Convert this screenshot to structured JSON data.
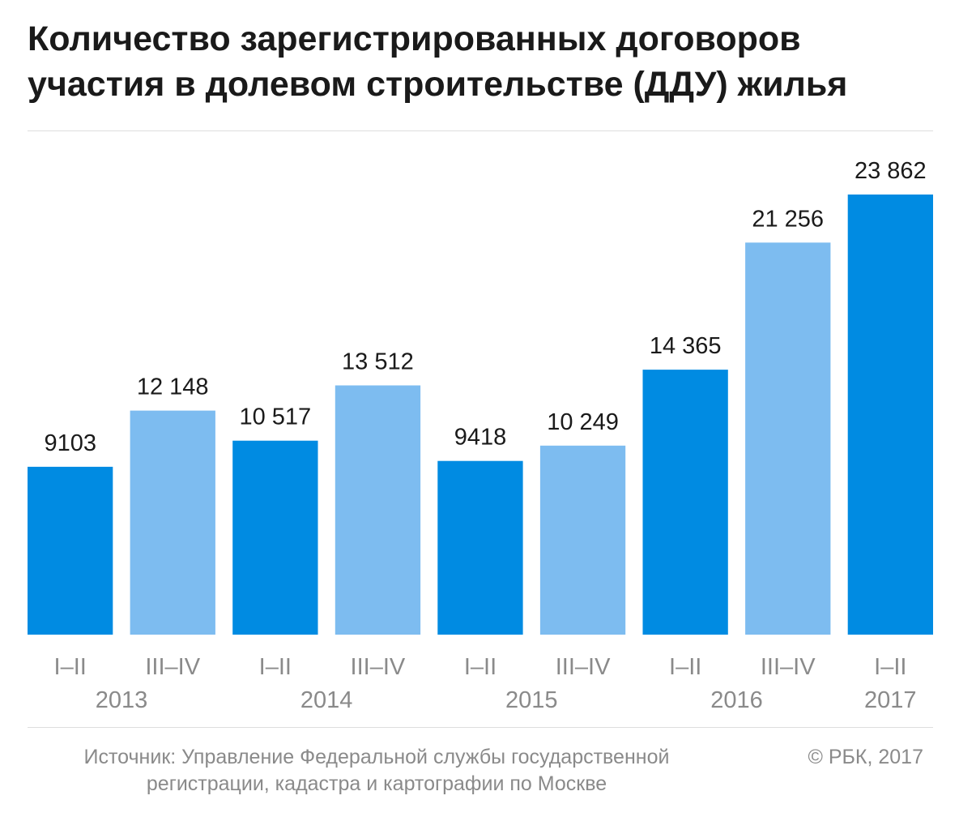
{
  "title": {
    "line1": "Количество зарегистрированных договоров",
    "line2": "участия в долевом строительстве (ДДУ) жилья"
  },
  "footer": {
    "source_line1": "Источник: Управление Федеральной службы государственной",
    "source_line2": "регистрации, кадастра и картографии по Москве",
    "copyright": "© РБК, 2017"
  },
  "colors": {
    "first_half": "#008be2",
    "second_half": "#7dbcf0",
    "value_label": "#1a1a1a",
    "axis_label": "#8a8a8a"
  },
  "chart_data": {
    "type": "bar",
    "title": "Количество зарегистрированных договоров участия в долевом строительстве (ДДУ) жилья",
    "categories": [
      "I–II",
      "III–IV",
      "I–II",
      "III–IV",
      "I–II",
      "III–IV",
      "I–II",
      "III–IV",
      "I–II"
    ],
    "years": [
      {
        "label": "2013",
        "span": [
          0,
          1
        ]
      },
      {
        "label": "2014",
        "span": [
          2,
          3
        ]
      },
      {
        "label": "2015",
        "span": [
          4,
          5
        ]
      },
      {
        "label": "2016",
        "span": [
          6,
          7
        ]
      },
      {
        "label": "2017",
        "span": [
          8,
          8
        ]
      }
    ],
    "values": [
      9103,
      12148,
      10517,
      13512,
      9418,
      10249,
      14365,
      21256,
      23862
    ],
    "value_labels": [
      "9103",
      "12 148",
      "10 517",
      "13 512",
      "9418",
      "10 249",
      "14 365",
      "21 256",
      "23 862"
    ],
    "half_of_year": [
      "first",
      "second",
      "first",
      "second",
      "first",
      "second",
      "first",
      "second",
      "first"
    ],
    "ylim": [
      0,
      23862
    ],
    "xlabel": "",
    "ylabel": "",
    "grid": false,
    "legend": "none"
  }
}
